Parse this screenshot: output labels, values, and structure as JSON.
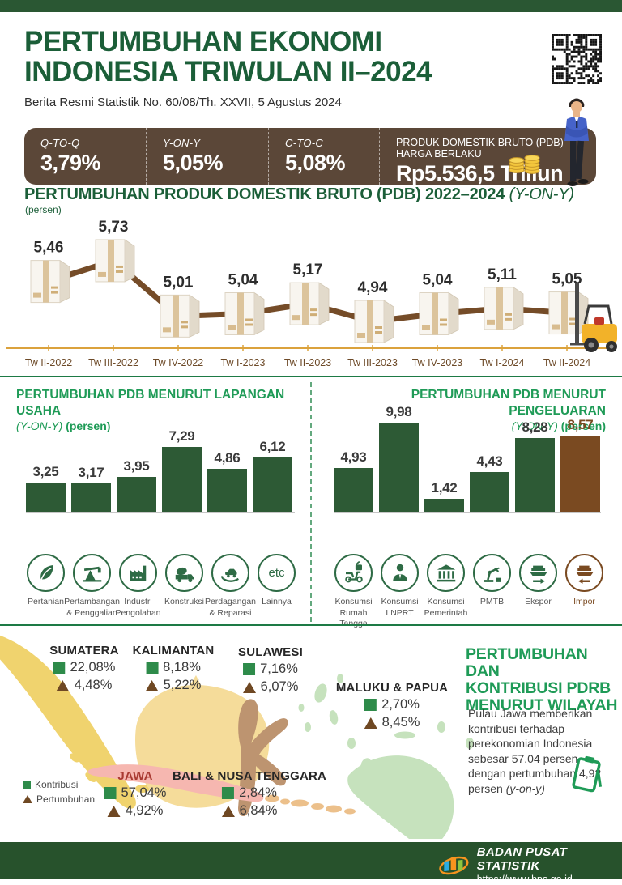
{
  "colors": {
    "dark_green": "#1b5e38",
    "bright_green": "#1f9b57",
    "bar_green": "#2d5a35",
    "highlight_brown": "#7a4a21",
    "stats_bar_brown": "#5b4738",
    "axis_gold": "#dba23c",
    "line_brown": "#754c28",
    "map_square_green": "#2e8b4a",
    "map_triangle_brown": "#6f4823"
  },
  "header": {
    "title_line1": "PERTUMBUHAN EKONOMI",
    "title_line2": "INDONESIA TRIWULAN II–2024",
    "subtitle": "Berita Resmi Statistik No. 60/08/Th. XXVII, 5 Agustus 2024"
  },
  "stats_bar": {
    "items": [
      {
        "label": "Q-TO-Q",
        "value": "3,79%"
      },
      {
        "label": "Y-ON-Y",
        "value": "5,05%"
      },
      {
        "label": "C-TO-C",
        "value": "5,08%"
      },
      {
        "label": "PRODUK DOMESTIK BRUTO (PDB) HARGA BERLAKU",
        "value": "Rp5.536,5 Triliun"
      }
    ]
  },
  "gdp_chart": {
    "title": "PERTUMBUHAN PRODUK DOMESTIK BRUTO (PDB) 2022–2024 ",
    "title_italic": "(Y-ON-Y)",
    "unit": "(persen)"
  },
  "sector_chart": {
    "title": "PERTUMBUHAN PDB MENURUT LAPANGAN USAHA",
    "subtitle_italic": "(Y-ON-Y)",
    "subtitle_bold": "(persen)",
    "etc_label": "etc"
  },
  "expenditure_chart": {
    "title": "PERTUMBUHAN PDB MENURUT PENGELUARAN",
    "subtitle_italic": "(Y-ON-Y)",
    "subtitle_bold": "(persen)"
  },
  "map": {
    "title": "PERTUMBUHAN DAN\nKONTRIBUSI PDRB\nMENURUT WILAYAH",
    "description": "Pulau Jawa memberikan kontribusi terhadap perekonomian Indonesia sebesar 57,04 persen dengan pertumbuhan 4,92 persen ",
    "description_italic": "(y-on-y)",
    "legend": {
      "contribution": "Kontribusi",
      "growth": "Pertumbuhan"
    },
    "regions": [
      {
        "name": "SUMATERA",
        "contribution": "22,08%",
        "growth": "4,48%"
      },
      {
        "name": "KALIMANTAN",
        "contribution": "8,18%",
        "growth": "5,22%"
      },
      {
        "name": "SULAWESI",
        "contribution": "7,16%",
        "growth": "6,07%"
      },
      {
        "name": "MALUKU & PAPUA",
        "contribution": "2,70%",
        "growth": "8,45%"
      },
      {
        "name": "JAWA",
        "contribution": "57,04%",
        "growth": "4,92%"
      },
      {
        "name": "BALI & NUSA TENGGARA",
        "contribution": "2,84%",
        "growth": "6,84%"
      }
    ]
  },
  "footer": {
    "org": "BADAN PUSAT STATISTIK",
    "url": "https://www.bps.go.id"
  },
  "chart_data": [
    {
      "id": "gdp_yoy",
      "type": "line",
      "title": "PERTUMBUHAN PRODUK DOMESTIK BRUTO (PDB) 2022–2024 (Y-ON-Y)",
      "ylabel": "persen",
      "x": [
        "Tw II-2022",
        "Tw  III-2022",
        "Tw IV-2022",
        "Tw I-2023",
        "Tw II-2023",
        "Tw III-2023",
        "Tw IV-2023",
        "Tw I-2024",
        "Tw II-2024"
      ],
      "values": [
        5.46,
        5.73,
        5.01,
        5.04,
        5.17,
        4.94,
        5.04,
        5.11,
        5.05
      ],
      "value_labels": [
        "5,46",
        "5,73",
        "5,01",
        "5,04",
        "5,17",
        "4,94",
        "5,04",
        "5,11",
        "5,05"
      ],
      "ylim": [
        4.94,
        5.73
      ],
      "grid": false,
      "marker": "cardboard-box"
    },
    {
      "id": "sector",
      "type": "bar",
      "title": "PERTUMBUHAN PDB MENURUT LAPANGAN USAHA (Y-ON-Y) (persen)",
      "categories": [
        "Pertanian",
        "Pertambangan & Penggalian",
        "Industri Pengolahan",
        "Konstruksi",
        "Perdagangan & Reparasi",
        "Lainnya"
      ],
      "category_labels": [
        "Pertanian",
        "Pertambangan\n& Penggalian",
        "Industri\nPengolahan",
        "Konstruksi",
        "Perdagangan\n& Reparasi",
        "Lainnya"
      ],
      "values": [
        3.25,
        3.17,
        3.95,
        7.29,
        4.86,
        6.12
      ],
      "value_labels": [
        "3,25",
        "3,17",
        "3,95",
        "7,29",
        "4,86",
        "6,12"
      ],
      "icons": [
        "leaf-icon",
        "mining-icon",
        "factory-icon",
        "truck-icon",
        "trade-icon",
        "etc-icon"
      ],
      "bar_color": "#2d5a35"
    },
    {
      "id": "expenditure",
      "type": "bar",
      "title": "PERTUMBUHAN PDB MENURUT PENGELUARAN (Y-ON-Y) (persen)",
      "categories": [
        "Konsumsi Rumah Tangga",
        "Konsumsi LNPRT",
        "Konsumsi Pemerintah",
        "PMTB",
        "Ekspor",
        "Impor"
      ],
      "category_labels": [
        "Konsumsi\nRumah Tangga",
        "Konsumsi\nLNPRT",
        "Konsumsi\nPemerintah",
        "PMTB",
        "Ekspor",
        "Impor"
      ],
      "values": [
        4.93,
        9.98,
        1.42,
        4.43,
        8.28,
        8.57
      ],
      "value_labels": [
        "4,93",
        "9,98",
        "1,42",
        "4,43",
        "8,28",
        "8,57"
      ],
      "icons": [
        "scooter-icon",
        "person-icon",
        "government-icon",
        "robot-arm-icon",
        "export-ship-icon",
        "import-ship-icon"
      ],
      "bar_color": "#2d5a35",
      "highlight": {
        "index": 5,
        "color": "#7a4a21"
      }
    }
  ]
}
